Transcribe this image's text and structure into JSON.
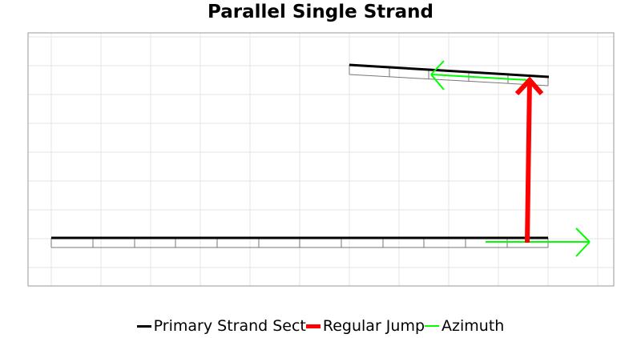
{
  "title": "Parallel Single Strand",
  "legend": [
    {
      "label": "Primary Strand Sect",
      "color": "#000000"
    },
    {
      "label": "Regular Jump",
      "color": "#ff0000"
    },
    {
      "label": "Azimuth",
      "color": "#00ff00"
    }
  ],
  "colors": {
    "strand": "#000000",
    "jump": "#ff0000",
    "azimuth": "#00ff00",
    "grid": "#e6e6e6",
    "frame": "#999999",
    "bank": "#777777"
  }
}
